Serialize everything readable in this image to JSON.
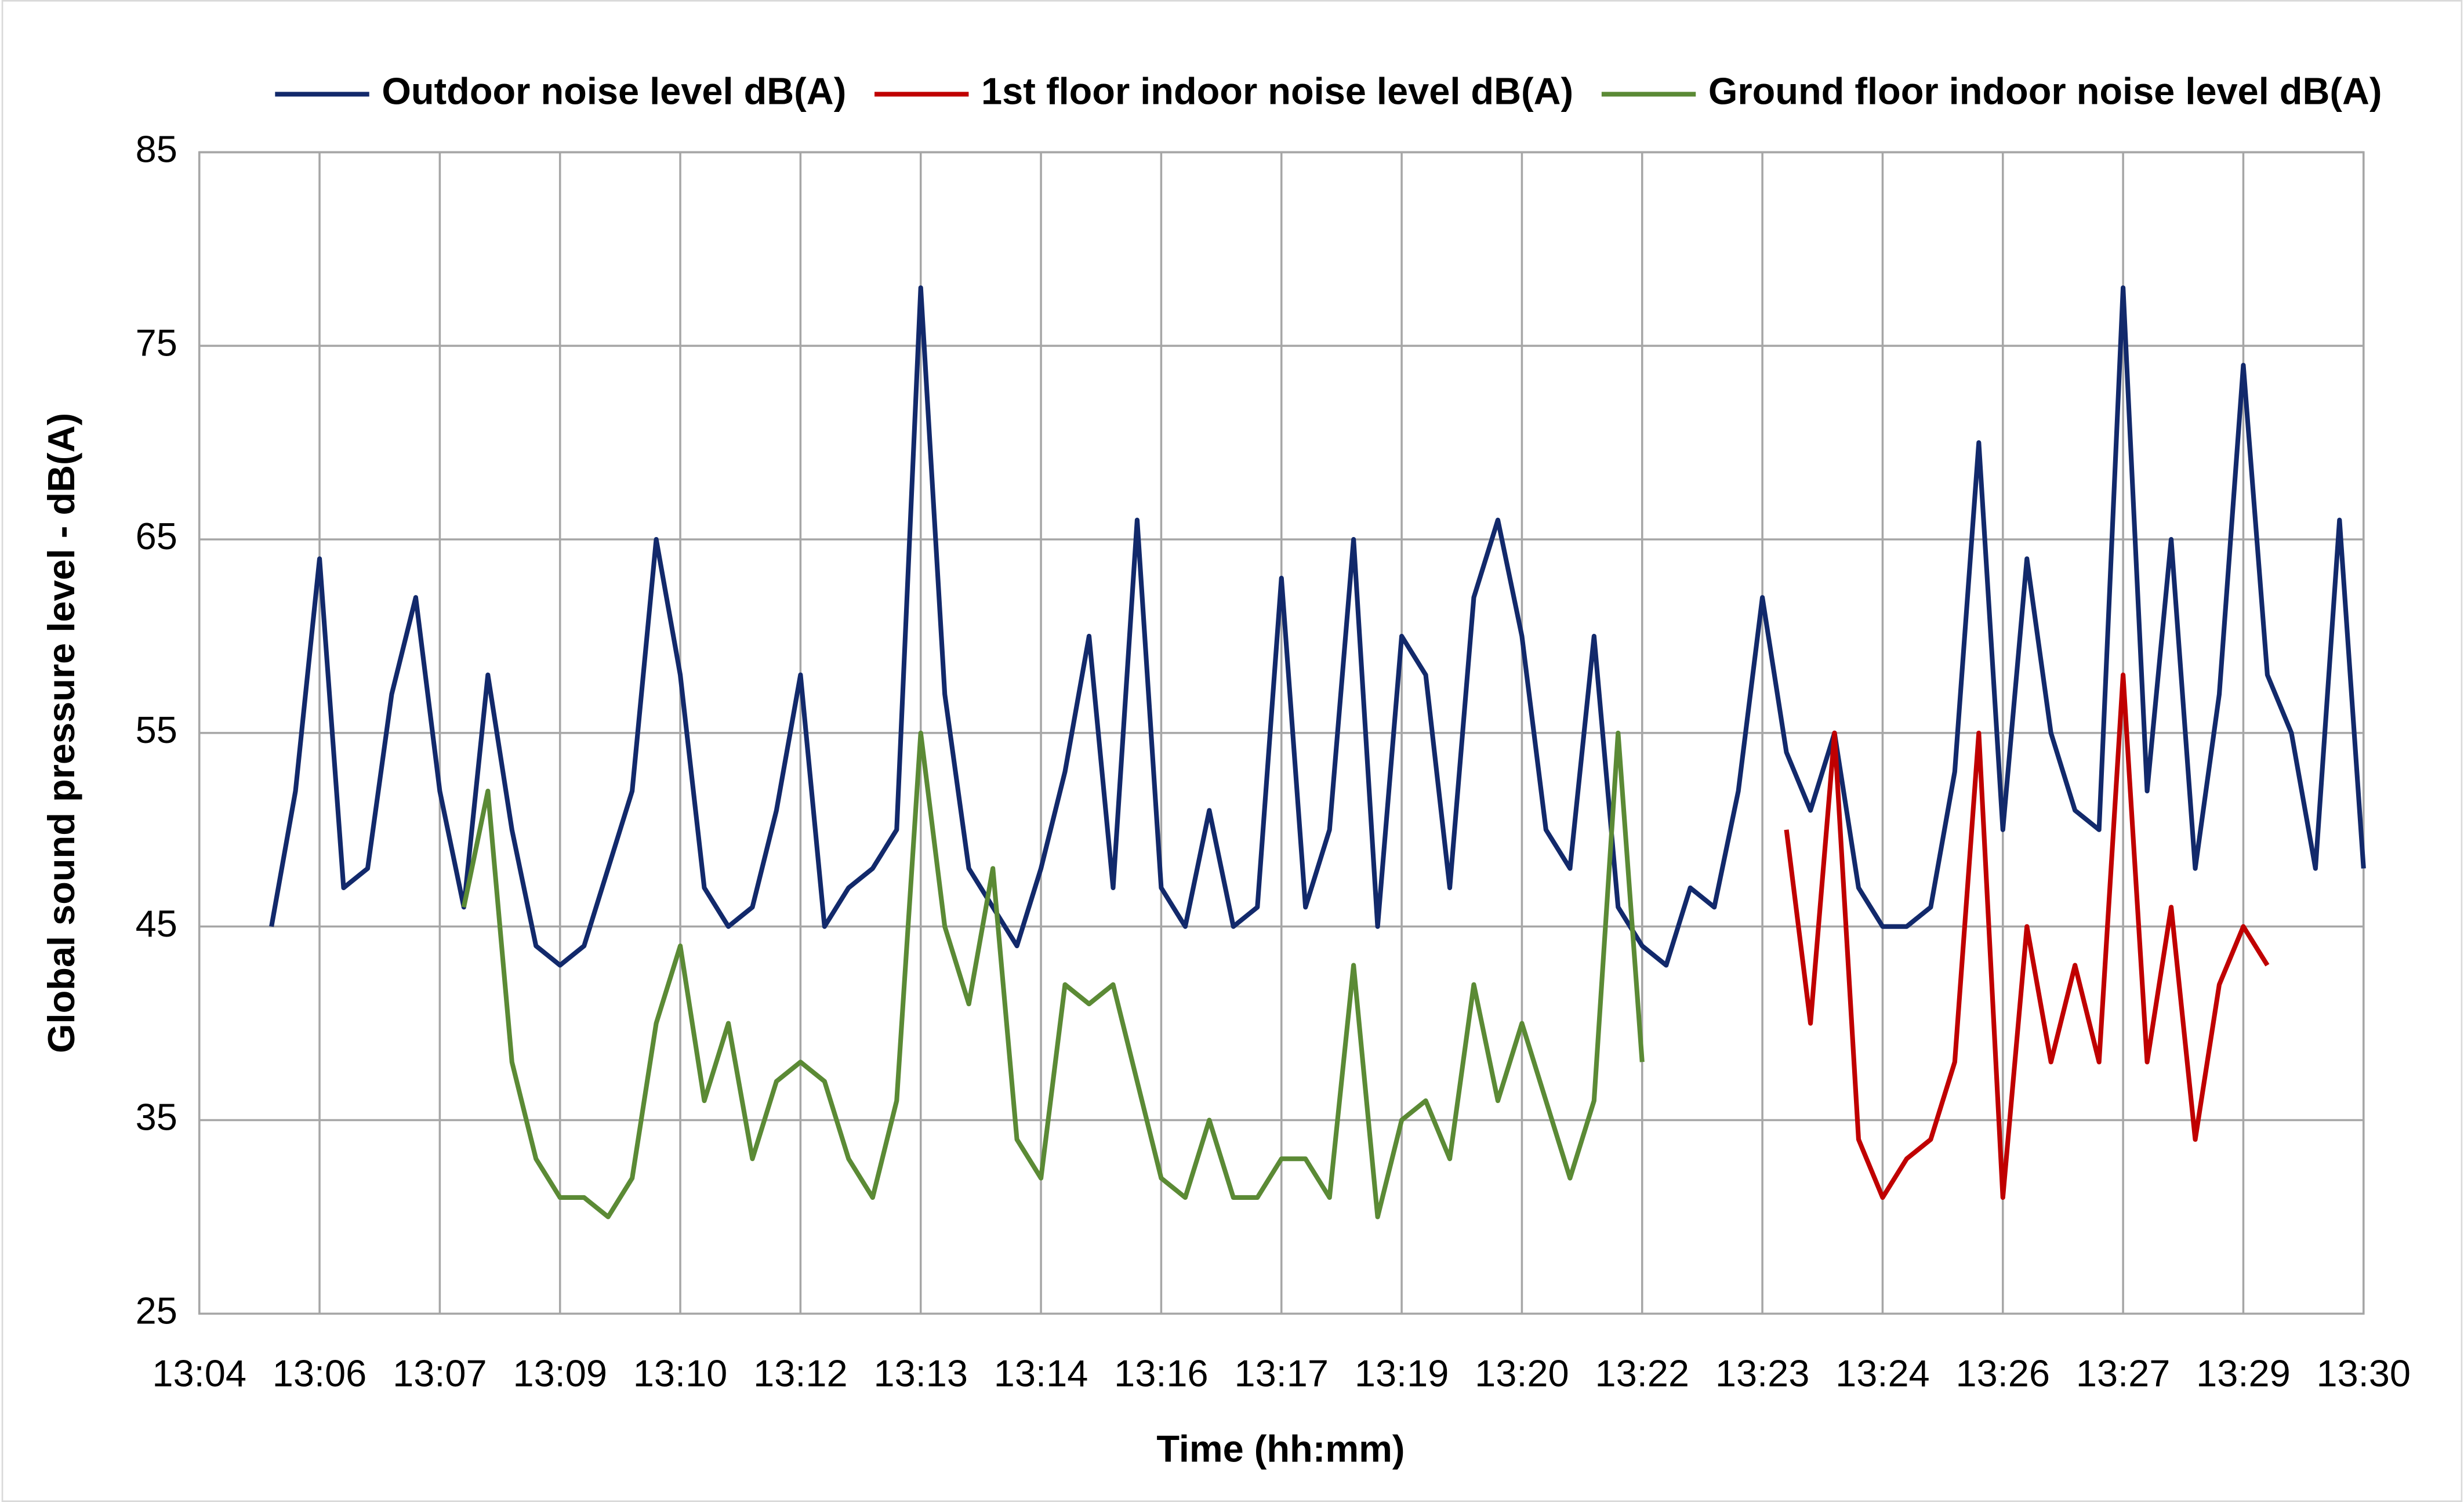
{
  "chart_data": {
    "type": "line",
    "x_label": "Time (hh:mm)",
    "y_label": "Global sound pressure level - dB(A)",
    "xlim": [
      0,
      18
    ],
    "xticks": [
      {
        "value": 0,
        "label": "13:04"
      },
      {
        "value": 1,
        "label": "13:06"
      },
      {
        "value": 2,
        "label": "13:07"
      },
      {
        "value": 3,
        "label": "13:09"
      },
      {
        "value": 4,
        "label": "13:10"
      },
      {
        "value": 5,
        "label": "13:12"
      },
      {
        "value": 6,
        "label": "13:13"
      },
      {
        "value": 7,
        "label": "13:14"
      },
      {
        "value": 8,
        "label": "13:16"
      },
      {
        "value": 9,
        "label": "13:17"
      },
      {
        "value": 10,
        "label": "13:19"
      },
      {
        "value": 11,
        "label": "13:20"
      },
      {
        "value": 12,
        "label": "13:22"
      },
      {
        "value": 13,
        "label": "13:23"
      },
      {
        "value": 14,
        "label": "13:24"
      },
      {
        "value": 15,
        "label": "13:26"
      },
      {
        "value": 16,
        "label": "13:27"
      },
      {
        "value": 17,
        "label": "13:29"
      },
      {
        "value": 18,
        "label": "13:30"
      }
    ],
    "ylim": [
      25,
      85
    ],
    "yticks": [
      25,
      35,
      45,
      55,
      65,
      75,
      85
    ],
    "grid": true,
    "legend": "top",
    "x": [
      0.6,
      0.8,
      1,
      1.2,
      1.4,
      1.6,
      1.8,
      2,
      2.2,
      2.4,
      2.6,
      2.8,
      3,
      3.2,
      3.4,
      3.6,
      3.8,
      4,
      4.2,
      4.4,
      4.6,
      4.8,
      5,
      5.2,
      5.4,
      5.6,
      5.8,
      6,
      6.2,
      6.4,
      6.6,
      6.8,
      7,
      7.2,
      7.4,
      7.6,
      7.8,
      8,
      8.2,
      8.4,
      8.6,
      8.8,
      9,
      9.2,
      9.4,
      9.6,
      9.8,
      10,
      10.2,
      10.4,
      10.6,
      10.8,
      11,
      11.2,
      11.4,
      11.6,
      11.8,
      12,
      12.2,
      12.4,
      12.6,
      12.8,
      13,
      13.2,
      13.4,
      13.6,
      13.8,
      14,
      14.2,
      14.4,
      14.6,
      14.8,
      15,
      15.2,
      15.4,
      15.6,
      15.8,
      16,
      16.2,
      16.4,
      16.6,
      16.8,
      17,
      17.2,
      17.4,
      17.6,
      17.8,
      18
    ],
    "series": [
      {
        "name": "Outdoor noise level dB(A)",
        "color": "#12296b",
        "values": [
          45,
          52,
          64,
          47,
          48,
          57,
          62,
          52,
          46,
          58,
          50,
          44,
          43,
          44,
          48,
          52,
          65,
          58,
          47,
          45,
          46,
          51,
          58,
          45,
          47,
          48,
          50,
          78,
          57,
          48,
          46,
          44,
          48,
          53,
          60,
          47,
          66,
          47,
          45,
          51,
          45,
          46,
          63,
          46,
          50,
          65,
          45,
          60,
          58,
          47,
          62,
          66,
          60,
          50,
          48,
          60,
          46,
          44,
          43,
          47,
          46,
          52,
          62,
          54,
          51,
          55,
          47,
          45,
          45,
          46,
          53,
          70,
          50,
          64,
          55,
          51,
          50,
          78,
          52,
          65,
          48,
          57,
          74,
          58,
          55,
          48,
          66,
          48
        ]
      },
      {
        "name": "1st floor indoor noise level dB(A)",
        "color": "#c00000",
        "values": [
          null,
          null,
          null,
          null,
          null,
          null,
          null,
          null,
          null,
          null,
          null,
          null,
          null,
          null,
          null,
          null,
          null,
          null,
          null,
          null,
          null,
          null,
          null,
          null,
          null,
          null,
          null,
          null,
          null,
          null,
          null,
          null,
          null,
          null,
          null,
          null,
          null,
          null,
          null,
          null,
          null,
          null,
          null,
          null,
          null,
          null,
          null,
          null,
          null,
          null,
          null,
          null,
          null,
          null,
          null,
          null,
          null,
          null,
          null,
          null,
          null,
          null,
          null,
          50,
          40,
          55,
          34,
          31,
          33,
          34,
          38,
          55,
          31,
          45,
          38,
          43,
          38,
          58,
          38,
          46,
          34,
          42,
          45,
          43,
          null,
          null,
          null,
          null
        ]
      },
      {
        "name": "Ground floor indoor noise level dB(A)",
        "color": "#5b8a35",
        "values": [
          null,
          null,
          null,
          null,
          null,
          null,
          null,
          null,
          46,
          52,
          38,
          33,
          31,
          31,
          30,
          32,
          40,
          44,
          36,
          40,
          33,
          37,
          38,
          37,
          33,
          31,
          36,
          55,
          45,
          41,
          48,
          34,
          32,
          42,
          41,
          42,
          37,
          32,
          31,
          35,
          31,
          31,
          33,
          33,
          31,
          43,
          30,
          35,
          36,
          33,
          42,
          36,
          40,
          36,
          32,
          36,
          55,
          38,
          null,
          null,
          null,
          null,
          null,
          null,
          null,
          null,
          null,
          null,
          null,
          null,
          null,
          null,
          null,
          null,
          null,
          null,
          null,
          null,
          null,
          null,
          null,
          null,
          null,
          null,
          null,
          null,
          null,
          null
        ]
      }
    ]
  }
}
